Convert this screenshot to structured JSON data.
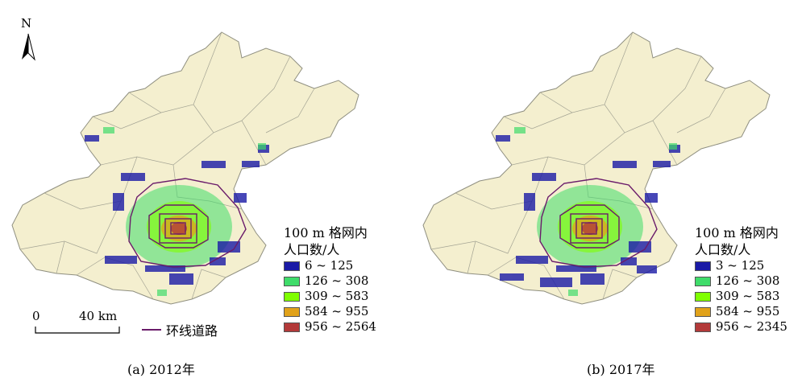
{
  "north": {
    "label": "N",
    "icon": "north-arrow-icon"
  },
  "scale_bar": {
    "start": "0",
    "end": "40 km"
  },
  "road_legend": {
    "label": "环线道路",
    "color": "#6a1b6a"
  },
  "colors": {
    "base": "#f4efcf",
    "district_border": "#9a9a8a",
    "class_1": "#1a1aa6",
    "class_2": "#3fdc6a",
    "class_3": "#7fff00",
    "class_4": "#e1a21a",
    "class_5": "#b33a3a"
  },
  "maps": [
    {
      "caption": "(a) 2012年",
      "legend_title_1": "100 m 格网内",
      "legend_title_2": "人口数/人",
      "classes": [
        "6 ~ 125",
        "126 ~ 308",
        "309 ~ 583",
        "584 ~ 955",
        "956 ~ 2564"
      ]
    },
    {
      "caption": "(b) 2017年",
      "legend_title_1": "100 m 格网内",
      "legend_title_2": "人口数/人",
      "classes": [
        "3 ~ 125",
        "126 ~ 308",
        "309 ~ 583",
        "584 ~ 955",
        "956 ~ 2345"
      ]
    }
  ]
}
